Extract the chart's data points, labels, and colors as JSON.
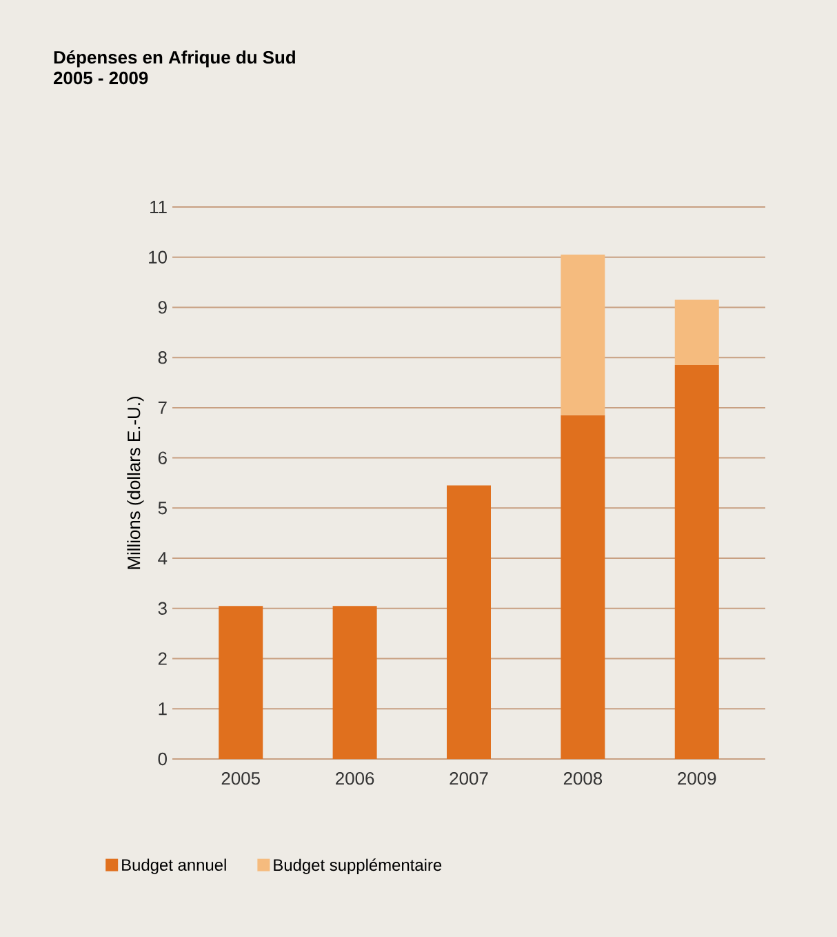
{
  "chart_data": {
    "type": "bar",
    "title": "Dépenses en Afrique du Sud",
    "subtitle": "2005 - 2009",
    "ylabel": "Millions (dollars E.-U.)",
    "categories": [
      "2005",
      "2006",
      "2007",
      "2008",
      "2009"
    ],
    "series": [
      {
        "name": "Budget annuel",
        "color": "#e0701e",
        "values": [
          3.05,
          3.05,
          5.45,
          6.85,
          7.85
        ]
      },
      {
        "name": "Budget supplémentaire",
        "color": "#f5bb7e",
        "values": [
          null,
          null,
          null,
          3.2,
          1.3
        ]
      }
    ],
    "stacked": true,
    "ylim": [
      0,
      11
    ],
    "yticks": [
      0,
      1,
      2,
      3,
      4,
      5,
      6,
      7,
      8,
      9,
      10,
      11
    ],
    "grid": "y",
    "legend": "bottom left"
  }
}
